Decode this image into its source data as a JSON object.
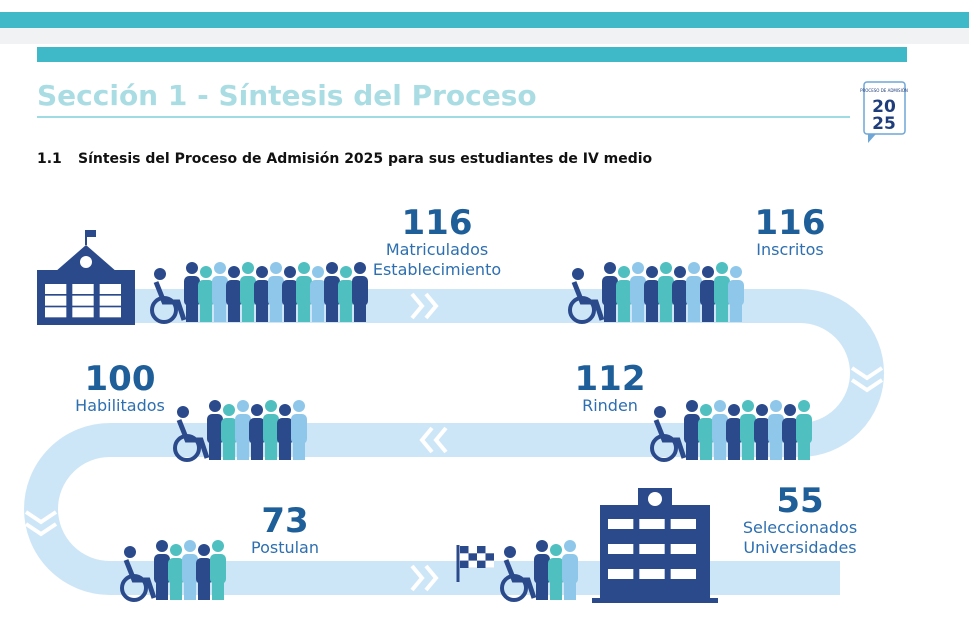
{
  "header": {
    "title": "Sección 1 - Síntesis del Proceso",
    "logo": {
      "top": "PROCESO DE ADMISIÓN",
      "year_a": "20",
      "year_b": "25"
    }
  },
  "section": {
    "number": "1.1",
    "title": "Síntesis del Proceso de Admisión 2025 para sus estudiantes de IV medio"
  },
  "stages": [
    {
      "number": 116,
      "lines": [
        "Matriculados",
        "Establecimiento"
      ]
    },
    {
      "number": 116,
      "lines": [
        "Inscritos"
      ]
    },
    {
      "number": 112,
      "lines": [
        "Rinden"
      ]
    },
    {
      "number": 100,
      "lines": [
        "Habilitados"
      ]
    },
    {
      "number": 73,
      "lines": [
        "Postulan"
      ]
    },
    {
      "number": 55,
      "lines": [
        "Seleccionados",
        "Universidades"
      ]
    }
  ]
}
